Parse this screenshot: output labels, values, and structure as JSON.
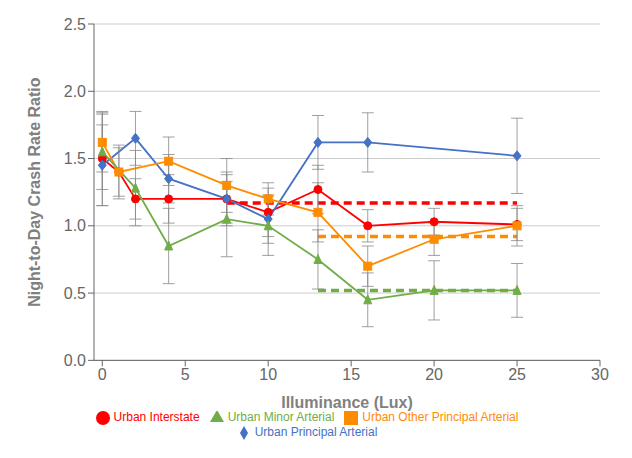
{
  "chart_data": {
    "type": "line",
    "xlabel": "Illuminance (Lux)",
    "ylabel": "Night-to-Day Crash Rate Ratio",
    "xlim": [
      -0.5,
      30
    ],
    "ylim": [
      0,
      2.5
    ],
    "xticks": [
      0,
      5,
      10,
      15,
      20,
      25,
      30
    ],
    "yticks": [
      {
        "value": 0,
        "label": "0.0"
      },
      0.5,
      {
        "value": 1.0,
        "label": "1.0"
      },
      1.5,
      {
        "value": 2.0,
        "label": "2.0"
      },
      2.5
    ],
    "grid": "y",
    "legend": "bottom",
    "series": [
      {
        "name": "Urban Interstate",
        "color": "#FF0000",
        "marker": "circle",
        "x": [
          0,
          1,
          2,
          4,
          7.5,
          10,
          13,
          16,
          20,
          25
        ],
        "values": [
          1.5,
          1.4,
          1.2,
          1.2,
          1.2,
          1.1,
          1.27,
          1.0,
          1.03,
          1.01
        ],
        "yerr_lo": [
          0.35,
          0.2,
          0.15,
          0.18,
          0.2,
          0.18,
          0.18,
          0.12,
          0.1,
          0.12
        ],
        "yerr_hi": [
          0.35,
          0.2,
          0.15,
          0.18,
          0.2,
          0.18,
          0.18,
          0.12,
          0.1,
          0.12
        ],
        "trend": {
          "x": [
            7.5,
            25
          ],
          "values": [
            1.17,
            1.17
          ],
          "line_style": "dashed"
        }
      },
      {
        "name": "Urban Principal Arterial",
        "color": "#4472C4",
        "marker": "diamond",
        "x": [
          0,
          2,
          4,
          7.5,
          10,
          13,
          16,
          25
        ],
        "values": [
          1.45,
          1.65,
          1.35,
          1.2,
          1.05,
          1.62,
          1.62,
          1.52
        ],
        "yerr_lo": [
          0.3,
          0.2,
          0.18,
          0.18,
          0.18,
          0.2,
          0.22,
          0.28
        ],
        "yerr_hi": [
          0.3,
          0.2,
          0.18,
          0.18,
          0.18,
          0.2,
          0.22,
          0.28
        ]
      },
      {
        "name": "Urban Other Principal Arterial",
        "color": "#FF8C00",
        "marker": "square",
        "x": [
          0,
          1,
          4,
          7.5,
          10,
          13,
          16,
          20,
          25
        ],
        "values": [
          1.62,
          1.4,
          1.48,
          1.3,
          1.2,
          1.1,
          0.7,
          0.9,
          1.0
        ],
        "yerr_lo": [
          0.22,
          0.18,
          0.18,
          0.2,
          0.12,
          0.22,
          0.15,
          0.12,
          0.15
        ],
        "yerr_hi": [
          0.22,
          0.18,
          0.18,
          0.2,
          0.12,
          0.22,
          0.15,
          0.12,
          0.15
        ],
        "trend": {
          "x": [
            13,
            25
          ],
          "values": [
            0.92,
            0.92
          ],
          "line_style": "dashed"
        }
      },
      {
        "name": "Urban Minor Arterial",
        "color": "#70AD47",
        "marker": "triangle",
        "x": [
          0,
          2,
          4,
          7.5,
          10,
          13,
          16,
          20,
          25
        ],
        "values": [
          1.55,
          1.28,
          0.85,
          1.05,
          1.0,
          0.75,
          0.45,
          0.52,
          0.52
        ],
        "yerr_lo": [
          0.28,
          0.28,
          0.28,
          0.28,
          0.22,
          0.22,
          0.2,
          0.22,
          0.2
        ],
        "yerr_hi": [
          0.28,
          0.28,
          0.28,
          0.28,
          0.22,
          0.22,
          0.2,
          0.22,
          0.2
        ],
        "trend": {
          "x": [
            13,
            25
          ],
          "values": [
            0.52,
            0.52
          ],
          "line_style": "dashed"
        }
      }
    ]
  }
}
